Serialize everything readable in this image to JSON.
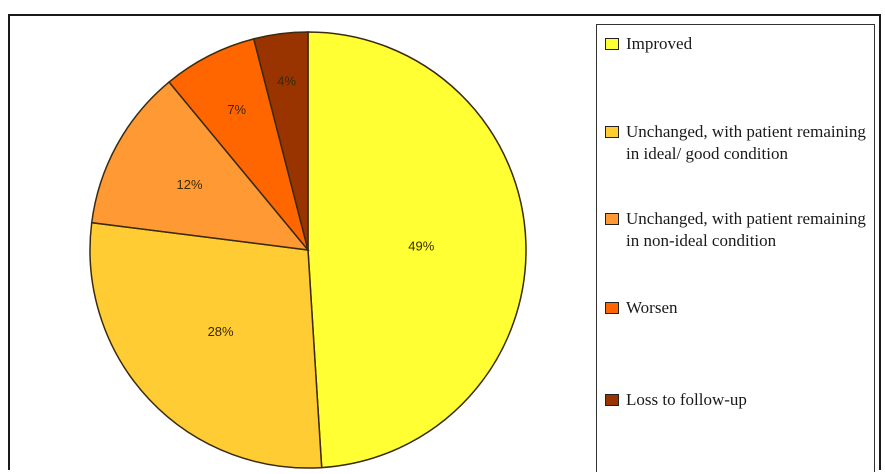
{
  "chart_data": {
    "type": "pie",
    "categories": [
      "Improved",
      "Unchanged, with patient remaining in ideal/ good condition",
      "Unchanged, with patient remaining in non-ideal condition",
      "Worsen",
      "Loss to follow-up"
    ],
    "values": [
      49,
      28,
      12,
      7,
      4
    ],
    "labels": [
      "49%",
      "28%",
      "12%",
      "7%",
      "4%"
    ],
    "colors": [
      "#FFFF33",
      "#FFCC33",
      "#FF9933",
      "#FF6600",
      "#993300"
    ],
    "title": "",
    "legend_position": "right"
  }
}
